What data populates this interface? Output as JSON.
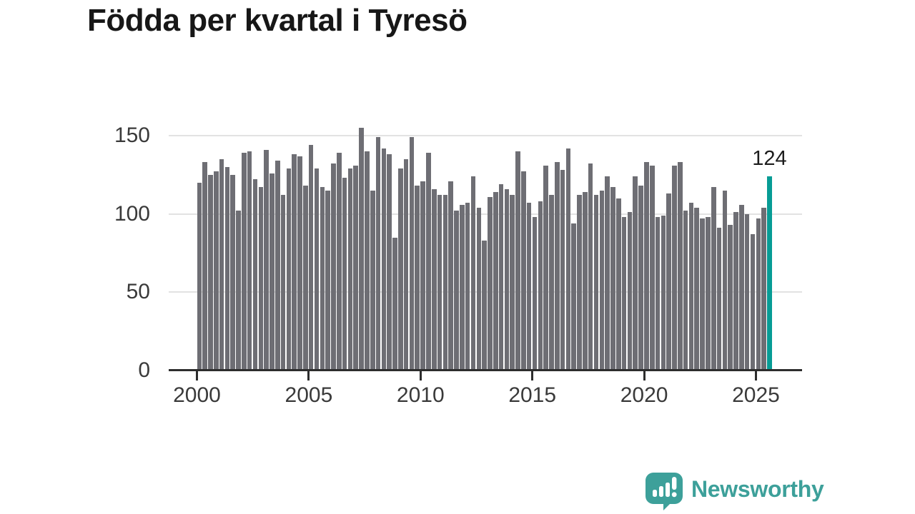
{
  "header": {
    "title": "Födda per kvartal i Tyresö"
  },
  "chart_data": {
    "type": "bar",
    "title": "Födda per kvartal i Tyresö",
    "xlabel": "",
    "ylabel": "",
    "x_unit": "quarter",
    "start_period": "2000 Q1",
    "end_period": "2025 Q3",
    "x_tick_labels": [
      "2000",
      "2005",
      "2010",
      "2015",
      "2020",
      "2025"
    ],
    "y_ticks": [
      0,
      50,
      100,
      150
    ],
    "ylim": [
      0,
      160
    ],
    "grid": "horizontal",
    "legend": "none",
    "values": [
      120,
      133,
      125,
      127,
      135,
      130,
      125,
      102,
      139,
      140,
      122,
      117,
      141,
      126,
      134,
      112,
      129,
      138,
      137,
      118,
      144,
      129,
      117,
      115,
      132,
      139,
      123,
      129,
      131,
      155,
      140,
      115,
      149,
      142,
      138,
      85,
      129,
      135,
      149,
      118,
      121,
      139,
      116,
      112,
      112,
      121,
      102,
      106,
      107,
      124,
      104,
      83,
      111,
      114,
      119,
      116,
      112,
      140,
      127,
      107,
      98,
      108,
      131,
      112,
      133,
      128,
      142,
      94,
      112,
      114,
      132,
      112,
      115,
      124,
      117,
      110,
      98,
      101,
      124,
      118,
      133,
      131,
      98,
      99,
      113,
      131,
      133,
      102,
      107,
      104,
      97,
      98,
      117,
      91,
      115,
      93,
      101,
      106,
      100,
      87,
      97,
      104,
      124
    ],
    "highlight": {
      "index": 102,
      "period": "2025 Q3",
      "value": 124,
      "label": "124"
    },
    "colors": {
      "bar": "#6e6e74",
      "highlight_bar": "#079c95",
      "grid_line": "#e2e2e2",
      "axis_line": "#2d2d2d",
      "tick_text": "#3a3a3a",
      "value_label_text": "#1d1d1d"
    }
  },
  "branding": {
    "logo_text": "Newsworthy",
    "logo_color": "#3da09a",
    "logo_icon": "bar-chart-speech-bubble-icon",
    "logo_icon_glyph_color": "#ffffff"
  }
}
